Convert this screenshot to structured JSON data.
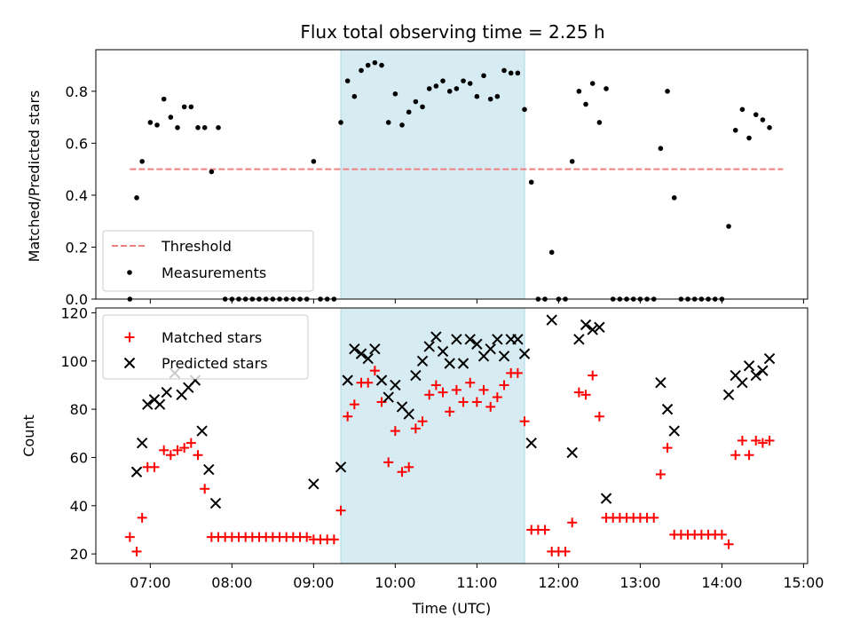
{
  "chart_data": [
    {
      "type": "scatter",
      "title": "Flux total observing time = 2.25 h",
      "ylabel": "Matched/Predicted stars",
      "ylim": [
        0,
        0.96
      ],
      "yticks": [
        0.0,
        0.2,
        0.4,
        0.6,
        0.8
      ],
      "ytick_labels": [
        "0.0",
        "0.2",
        "0.4",
        "0.6",
        "0.8"
      ],
      "xlim": [
        "06:20",
        "15:03"
      ],
      "highlight_span": [
        "09:20",
        "11:35"
      ],
      "highlight_color": "#add8e6",
      "legend_location": "lower-left",
      "threshold": {
        "name": "Threshold",
        "y": 0.5,
        "x_start": "06:45",
        "x_end": "14:45",
        "color": "#f08080"
      },
      "series": [
        {
          "name": "Measurements",
          "color": "#000000",
          "points": [
            [
              "06:45",
              0.0
            ],
            [
              "06:50",
              0.39
            ],
            [
              "06:54",
              0.53
            ],
            [
              "07:00",
              0.68
            ],
            [
              "07:05",
              0.67
            ],
            [
              "07:10",
              0.77
            ],
            [
              "07:15",
              0.7
            ],
            [
              "07:20",
              0.66
            ],
            [
              "07:25",
              0.74
            ],
            [
              "07:30",
              0.74
            ],
            [
              "07:35",
              0.66
            ],
            [
              "07:40",
              0.66
            ],
            [
              "07:45",
              0.49
            ],
            [
              "07:50",
              0.66
            ],
            [
              "07:55",
              0.0
            ],
            [
              "08:00",
              0.0
            ],
            [
              "08:05",
              0.0
            ],
            [
              "08:10",
              0.0
            ],
            [
              "08:15",
              0.0
            ],
            [
              "08:20",
              0.0
            ],
            [
              "08:25",
              0.0
            ],
            [
              "08:30",
              0.0
            ],
            [
              "08:35",
              0.0
            ],
            [
              "08:40",
              0.0
            ],
            [
              "08:45",
              0.0
            ],
            [
              "08:50",
              0.0
            ],
            [
              "08:55",
              0.0
            ],
            [
              "09:00",
              0.53
            ],
            [
              "09:05",
              0.0
            ],
            [
              "09:10",
              0.0
            ],
            [
              "09:15",
              0.0
            ],
            [
              "09:20",
              0.68
            ],
            [
              "09:25",
              0.84
            ],
            [
              "09:30",
              0.78
            ],
            [
              "09:35",
              0.88
            ],
            [
              "09:40",
              0.9
            ],
            [
              "09:45",
              0.91
            ],
            [
              "09:50",
              0.9
            ],
            [
              "09:55",
              0.68
            ],
            [
              "10:00",
              0.79
            ],
            [
              "10:05",
              0.67
            ],
            [
              "10:10",
              0.72
            ],
            [
              "10:15",
              0.76
            ],
            [
              "10:20",
              0.74
            ],
            [
              "10:25",
              0.81
            ],
            [
              "10:30",
              0.82
            ],
            [
              "10:35",
              0.84
            ],
            [
              "10:40",
              0.8
            ],
            [
              "10:45",
              0.81
            ],
            [
              "10:50",
              0.84
            ],
            [
              "10:55",
              0.83
            ],
            [
              "11:00",
              0.78
            ],
            [
              "11:05",
              0.86
            ],
            [
              "11:10",
              0.77
            ],
            [
              "11:15",
              0.78
            ],
            [
              "11:20",
              0.88
            ],
            [
              "11:25",
              0.87
            ],
            [
              "11:30",
              0.87
            ],
            [
              "11:35",
              0.73
            ],
            [
              "11:40",
              0.45
            ],
            [
              "11:45",
              0.0
            ],
            [
              "11:50",
              0.0
            ],
            [
              "11:55",
              0.18
            ],
            [
              "12:00",
              0.0
            ],
            [
              "12:05",
              0.0
            ],
            [
              "12:10",
              0.53
            ],
            [
              "12:15",
              0.8
            ],
            [
              "12:20",
              0.75
            ],
            [
              "12:25",
              0.83
            ],
            [
              "12:30",
              0.68
            ],
            [
              "12:35",
              0.81
            ],
            [
              "12:40",
              0.0
            ],
            [
              "12:45",
              0.0
            ],
            [
              "12:50",
              0.0
            ],
            [
              "12:55",
              0.0
            ],
            [
              "13:00",
              0.0
            ],
            [
              "13:05",
              0.0
            ],
            [
              "13:10",
              0.0
            ],
            [
              "13:15",
              0.58
            ],
            [
              "13:20",
              0.8
            ],
            [
              "13:25",
              0.39
            ],
            [
              "13:30",
              0.0
            ],
            [
              "13:35",
              0.0
            ],
            [
              "13:40",
              0.0
            ],
            [
              "13:45",
              0.0
            ],
            [
              "13:50",
              0.0
            ],
            [
              "13:55",
              0.0
            ],
            [
              "14:00",
              0.0
            ],
            [
              "14:05",
              0.28
            ],
            [
              "14:10",
              0.65
            ],
            [
              "14:15",
              0.73
            ],
            [
              "14:20",
              0.62
            ],
            [
              "14:25",
              0.71
            ],
            [
              "14:30",
              0.69
            ],
            [
              "14:35",
              0.66
            ]
          ]
        }
      ]
    },
    {
      "type": "scatter",
      "xlabel": "Time (UTC)",
      "ylabel": "Count",
      "ylim": [
        16,
        122
      ],
      "yticks": [
        20,
        40,
        60,
        80,
        100,
        120
      ],
      "ytick_labels": [
        "20",
        "40",
        "60",
        "80",
        "100",
        "120"
      ],
      "xlim": [
        "06:20",
        "15:03"
      ],
      "xticks": [
        "07:00",
        "08:00",
        "09:00",
        "10:00",
        "11:00",
        "12:00",
        "13:00",
        "14:00",
        "15:00"
      ],
      "xtick_labels": [
        "07:00",
        "08:00",
        "09:00",
        "10:00",
        "11:00",
        "12:00",
        "13:00",
        "14:00",
        "15:00"
      ],
      "highlight_span": [
        "09:20",
        "11:35"
      ],
      "highlight_color": "#add8e6",
      "legend_location": "upper-left",
      "series": [
        {
          "name": "Matched stars",
          "marker": "plus",
          "color": "#ff0000",
          "points": [
            [
              "06:45",
              27
            ],
            [
              "06:50",
              21
            ],
            [
              "06:54",
              35
            ],
            [
              "06:58",
              56
            ],
            [
              "07:03",
              56
            ],
            [
              "07:10",
              63
            ],
            [
              "07:15",
              61
            ],
            [
              "07:20",
              63
            ],
            [
              "07:25",
              64
            ],
            [
              "07:30",
              66
            ],
            [
              "07:35",
              61
            ],
            [
              "07:40",
              47
            ],
            [
              "07:45",
              27
            ],
            [
              "07:50",
              27
            ],
            [
              "07:55",
              27
            ],
            [
              "08:00",
              27
            ],
            [
              "08:05",
              27
            ],
            [
              "08:10",
              27
            ],
            [
              "08:15",
              27
            ],
            [
              "08:20",
              27
            ],
            [
              "08:25",
              27
            ],
            [
              "08:30",
              27
            ],
            [
              "08:35",
              27
            ],
            [
              "08:40",
              27
            ],
            [
              "08:45",
              27
            ],
            [
              "08:50",
              27
            ],
            [
              "08:55",
              27
            ],
            [
              "09:00",
              26
            ],
            [
              "09:05",
              26
            ],
            [
              "09:10",
              26
            ],
            [
              "09:15",
              26
            ],
            [
              "09:20",
              38
            ],
            [
              "09:25",
              77
            ],
            [
              "09:30",
              82
            ],
            [
              "09:35",
              91
            ],
            [
              "09:40",
              91
            ],
            [
              "09:45",
              96
            ],
            [
              "09:50",
              83
            ],
            [
              "09:55",
              58
            ],
            [
              "10:00",
              71
            ],
            [
              "10:05",
              54
            ],
            [
              "10:10",
              56
            ],
            [
              "10:15",
              72
            ],
            [
              "10:20",
              75
            ],
            [
              "10:25",
              86
            ],
            [
              "10:30",
              90
            ],
            [
              "10:35",
              87
            ],
            [
              "10:40",
              79
            ],
            [
              "10:45",
              88
            ],
            [
              "10:50",
              83
            ],
            [
              "10:55",
              91
            ],
            [
              "11:00",
              83
            ],
            [
              "11:05",
              88
            ],
            [
              "11:10",
              81
            ],
            [
              "11:15",
              85
            ],
            [
              "11:20",
              90
            ],
            [
              "11:25",
              95
            ],
            [
              "11:30",
              95
            ],
            [
              "11:35",
              75
            ],
            [
              "11:40",
              30
            ],
            [
              "11:45",
              30
            ],
            [
              "11:50",
              30
            ],
            [
              "11:55",
              21
            ],
            [
              "12:00",
              21
            ],
            [
              "12:05",
              21
            ],
            [
              "12:10",
              33
            ],
            [
              "12:15",
              87
            ],
            [
              "12:20",
              86
            ],
            [
              "12:25",
              94
            ],
            [
              "12:30",
              77
            ],
            [
              "12:35",
              35
            ],
            [
              "12:40",
              35
            ],
            [
              "12:45",
              35
            ],
            [
              "12:50",
              35
            ],
            [
              "12:55",
              35
            ],
            [
              "13:00",
              35
            ],
            [
              "13:05",
              35
            ],
            [
              "13:10",
              35
            ],
            [
              "13:15",
              53
            ],
            [
              "13:20",
              64
            ],
            [
              "13:25",
              28
            ],
            [
              "13:30",
              28
            ],
            [
              "13:35",
              28
            ],
            [
              "13:40",
              28
            ],
            [
              "13:45",
              28
            ],
            [
              "13:50",
              28
            ],
            [
              "13:55",
              28
            ],
            [
              "14:00",
              28
            ],
            [
              "14:05",
              24
            ],
            [
              "14:10",
              61
            ],
            [
              "14:15",
              67
            ],
            [
              "14:20",
              61
            ],
            [
              "14:25",
              67
            ],
            [
              "14:30",
              66
            ],
            [
              "14:35",
              67
            ]
          ]
        },
        {
          "name": "Predicted stars",
          "marker": "x",
          "color": "#000000",
          "points": [
            [
              "06:50",
              54
            ],
            [
              "06:54",
              66
            ],
            [
              "06:58",
              82
            ],
            [
              "07:03",
              84
            ],
            [
              "07:07",
              82
            ],
            [
              "07:12",
              87
            ],
            [
              "07:18",
              95
            ],
            [
              "07:23",
              86
            ],
            [
              "07:28",
              89
            ],
            [
              "07:33",
              92
            ],
            [
              "07:38",
              71
            ],
            [
              "07:43",
              55
            ],
            [
              "07:48",
              41
            ],
            [
              "09:00",
              49
            ],
            [
              "09:20",
              56
            ],
            [
              "09:25",
              92
            ],
            [
              "09:30",
              105
            ],
            [
              "09:35",
              103
            ],
            [
              "09:40",
              101
            ],
            [
              "09:45",
              105
            ],
            [
              "09:50",
              92
            ],
            [
              "09:55",
              85
            ],
            [
              "10:00",
              90
            ],
            [
              "10:05",
              81
            ],
            [
              "10:10",
              78
            ],
            [
              "10:15",
              94
            ],
            [
              "10:20",
              100
            ],
            [
              "10:25",
              106
            ],
            [
              "10:30",
              110
            ],
            [
              "10:35",
              104
            ],
            [
              "10:40",
              99
            ],
            [
              "10:45",
              109
            ],
            [
              "10:50",
              99
            ],
            [
              "10:55",
              109
            ],
            [
              "11:00",
              107
            ],
            [
              "11:05",
              102
            ],
            [
              "11:10",
              105
            ],
            [
              "11:15",
              109
            ],
            [
              "11:20",
              102
            ],
            [
              "11:25",
              109
            ],
            [
              "11:30",
              109
            ],
            [
              "11:35",
              103
            ],
            [
              "11:40",
              66
            ],
            [
              "11:55",
              117
            ],
            [
              "12:10",
              62
            ],
            [
              "12:15",
              109
            ],
            [
              "12:20",
              115
            ],
            [
              "12:25",
              113
            ],
            [
              "12:30",
              114
            ],
            [
              "12:35",
              43
            ],
            [
              "13:15",
              91
            ],
            [
              "13:20",
              80
            ],
            [
              "13:25",
              71
            ],
            [
              "14:05",
              86
            ],
            [
              "14:10",
              94
            ],
            [
              "14:15",
              91
            ],
            [
              "14:20",
              98
            ],
            [
              "14:25",
              94
            ],
            [
              "14:30",
              96
            ],
            [
              "14:35",
              101
            ]
          ]
        }
      ]
    }
  ]
}
